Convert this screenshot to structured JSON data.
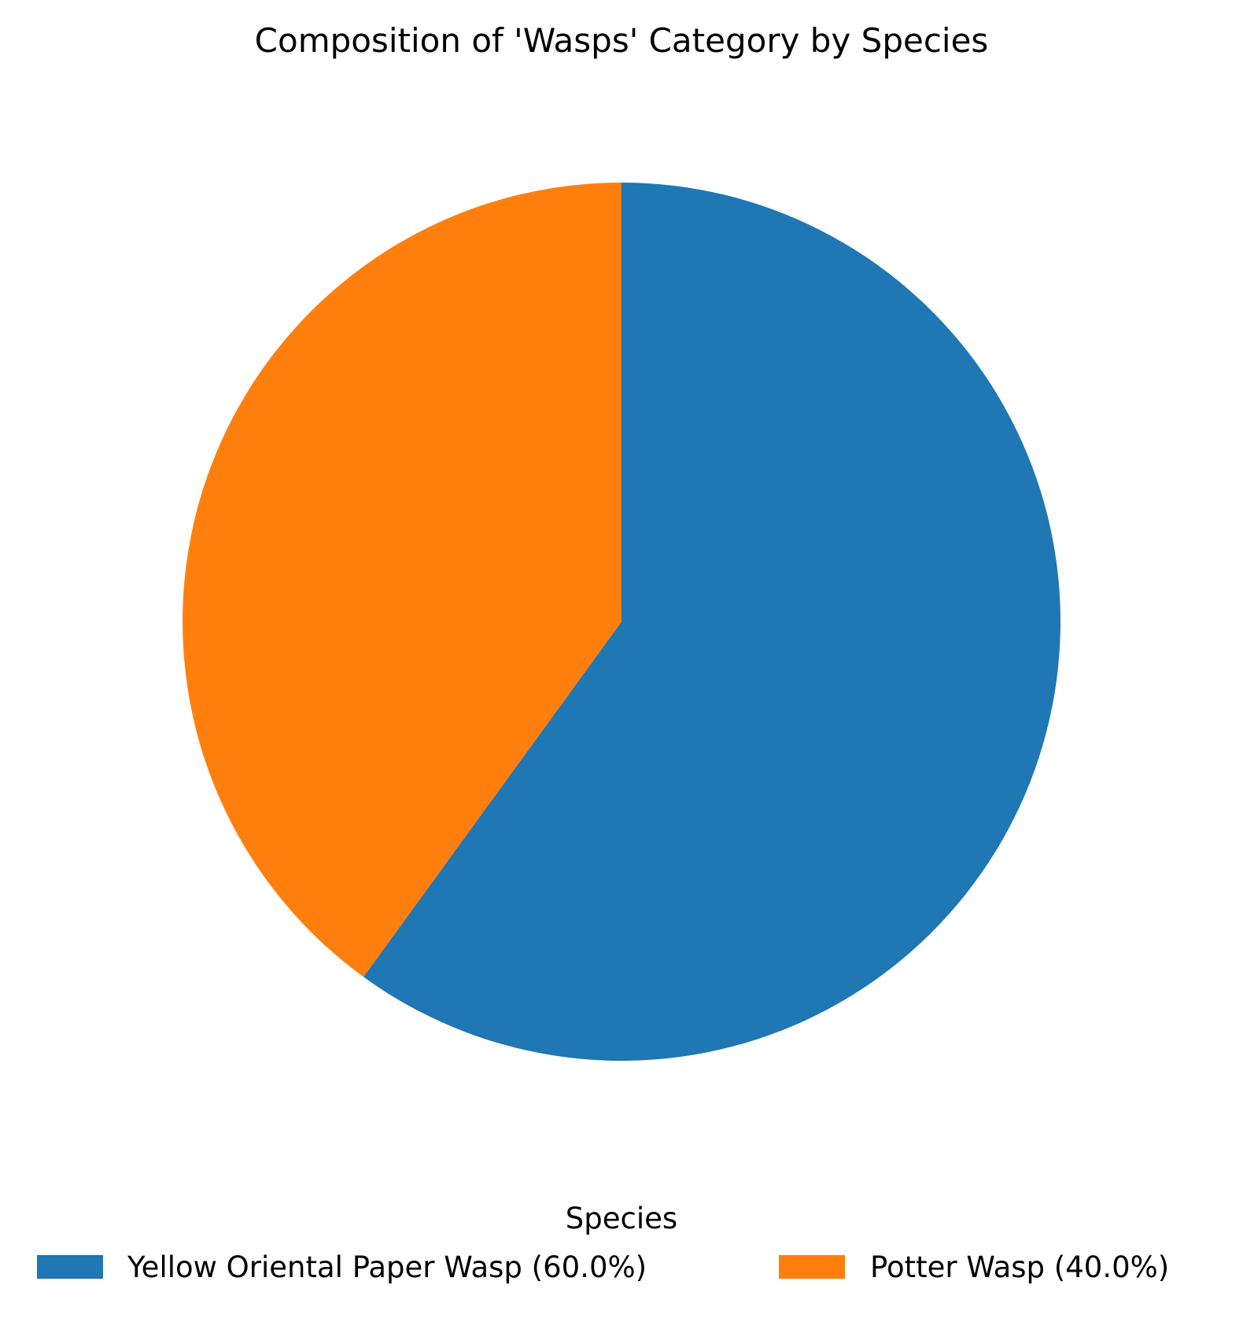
{
  "chart_data": {
    "type": "pie",
    "title": "Composition of 'Wasps' Category by Species",
    "start_angle_deg": 90,
    "direction": "clockwise",
    "legend": {
      "title": "Species",
      "placement": "bottom-center"
    },
    "slices": [
      {
        "label": "Yellow Oriental Paper Wasp",
        "legend_label": "Yellow Oriental Paper Wasp (60.0%)",
        "value": 60.0,
        "color": "#1f77b4"
      },
      {
        "label": "Potter Wasp",
        "legend_label": "Potter Wasp (40.0%)",
        "value": 40.0,
        "color": "#ff7f0e"
      }
    ]
  }
}
